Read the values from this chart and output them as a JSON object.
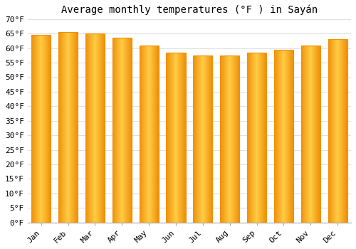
{
  "title": "Average monthly temperatures (°F ) in Sayán",
  "months": [
    "Jan",
    "Feb",
    "Mar",
    "Apr",
    "May",
    "Jun",
    "Jul",
    "Aug",
    "Sep",
    "Oct",
    "Nov",
    "Dec"
  ],
  "values": [
    64.5,
    65.5,
    65.0,
    63.5,
    61.0,
    58.5,
    57.5,
    57.5,
    58.5,
    59.5,
    61.0,
    63.0
  ],
  "bar_color_center": "#FFCC44",
  "bar_color_edge": "#F0900A",
  "background_color": "#FFFFFF",
  "plot_bg_color": "#FFFFFF",
  "ylim": [
    0,
    70
  ],
  "ytick_step": 5,
  "title_fontsize": 10,
  "tick_fontsize": 8,
  "grid_color": "#E0E0E0",
  "bar_width": 0.72,
  "n_gradient_strips": 40
}
